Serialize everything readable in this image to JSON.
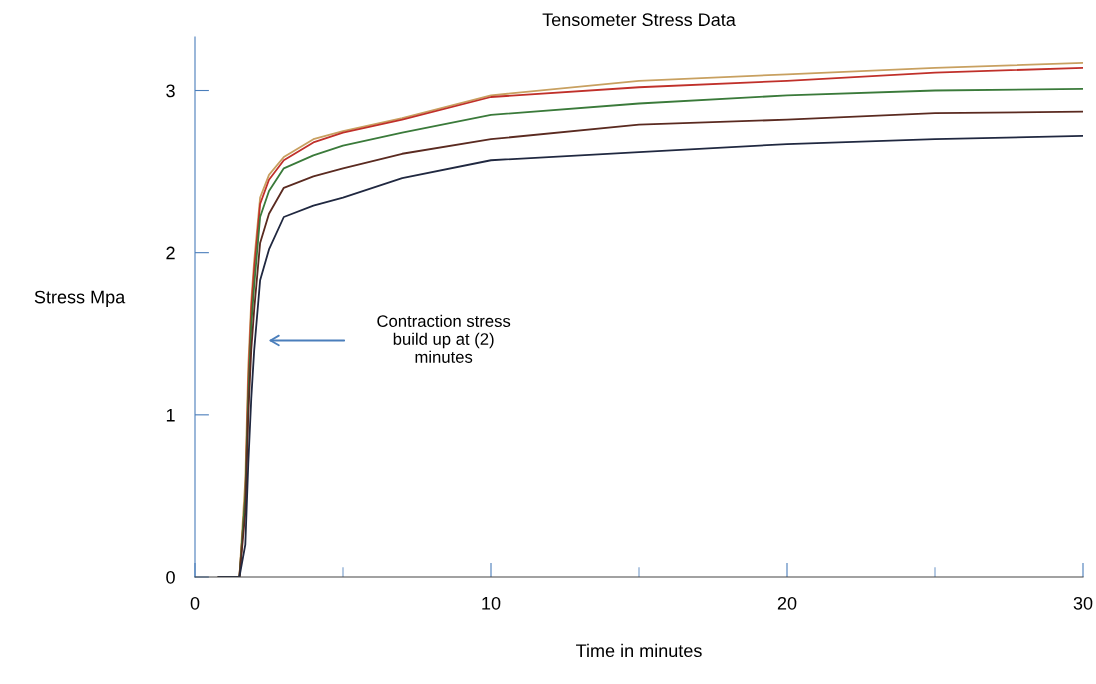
{
  "chart_data": {
    "type": "line",
    "title": "Tensometer Stress Data",
    "xlabel": "Time in minutes",
    "ylabel": "Stress Mpa",
    "x": [
      0.8,
      1.5,
      1.7,
      1.8,
      1.9,
      2.0,
      2.2,
      2.5,
      3,
      4,
      5,
      7,
      10,
      15,
      20,
      25,
      30
    ],
    "series": [
      {
        "color": "#c8a060",
        "values": [
          0,
          0,
          0.6,
          1.3,
          1.7,
          1.95,
          2.34,
          2.48,
          2.59,
          2.7,
          2.75,
          2.83,
          2.97,
          3.06,
          3.1,
          3.14,
          3.17
        ]
      },
      {
        "color": "#c0302a",
        "values": [
          0,
          0,
          0.5,
          1.2,
          1.65,
          1.9,
          2.3,
          2.45,
          2.57,
          2.68,
          2.74,
          2.82,
          2.96,
          3.02,
          3.06,
          3.11,
          3.14
        ]
      },
      {
        "color": "#3a7a3a",
        "values": [
          0,
          0,
          0.5,
          1.1,
          1.55,
          1.8,
          2.22,
          2.38,
          2.52,
          2.6,
          2.66,
          2.74,
          2.85,
          2.92,
          2.97,
          3.0,
          3.01
        ]
      },
      {
        "color": "#5a2a20",
        "values": [
          0,
          0,
          0.4,
          1.0,
          1.4,
          1.65,
          2.06,
          2.24,
          2.4,
          2.47,
          2.52,
          2.61,
          2.7,
          2.79,
          2.82,
          2.86,
          2.87
        ]
      },
      {
        "color": "#202840",
        "values": [
          0,
          0,
          0.2,
          0.7,
          1.1,
          1.4,
          1.83,
          2.02,
          2.22,
          2.29,
          2.34,
          2.46,
          2.57,
          2.62,
          2.67,
          2.7,
          2.72
        ]
      }
    ],
    "xlim": [
      0,
      30
    ],
    "ylim": [
      0,
      3.33
    ],
    "xticks": [
      0,
      {
        "value": 5,
        "label": null
      },
      10,
      {
        "value": 15,
        "label": null
      },
      20,
      {
        "value": 25,
        "label": null
      },
      30
    ],
    "yticks": [
      0,
      1,
      2,
      3
    ],
    "annotations": [
      "Contraction stress\nbuild up at (2)\nminutes"
    ],
    "grid": false,
    "legend": false,
    "marker": "none",
    "line_style": "solid"
  }
}
